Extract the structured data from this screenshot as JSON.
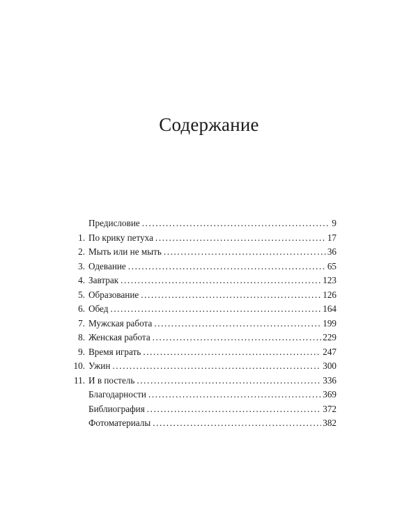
{
  "title": "Содержание",
  "entries": [
    {
      "number": "",
      "label": "Предисловие",
      "page": "9"
    },
    {
      "number": "1.",
      "label": "По крику петуха",
      "page": "17"
    },
    {
      "number": "2.",
      "label": "Мыть или не мыть",
      "page": "36"
    },
    {
      "number": "3.",
      "label": "Одевание",
      "page": "65"
    },
    {
      "number": "4.",
      "label": "Завтрак",
      "page": "123"
    },
    {
      "number": "5.",
      "label": "Образование",
      "page": "126"
    },
    {
      "number": "6.",
      "label": "Обед",
      "page": "164"
    },
    {
      "number": "7.",
      "label": "Мужская работа",
      "page": "199"
    },
    {
      "number": "8.",
      "label": "Женская работа",
      "page": "229"
    },
    {
      "number": "9.",
      "label": "Время играть",
      "page": "247"
    },
    {
      "number": "10.",
      "label": "Ужин",
      "page": "300"
    },
    {
      "number": "11.",
      "label": "И в постель",
      "page": "336"
    },
    {
      "number": "",
      "label": "Благодарности",
      "page": "369"
    },
    {
      "number": "",
      "label": "Библиография",
      "page": "372"
    },
    {
      "number": "",
      "label": "Фотоматериалы",
      "page": "382"
    }
  ]
}
